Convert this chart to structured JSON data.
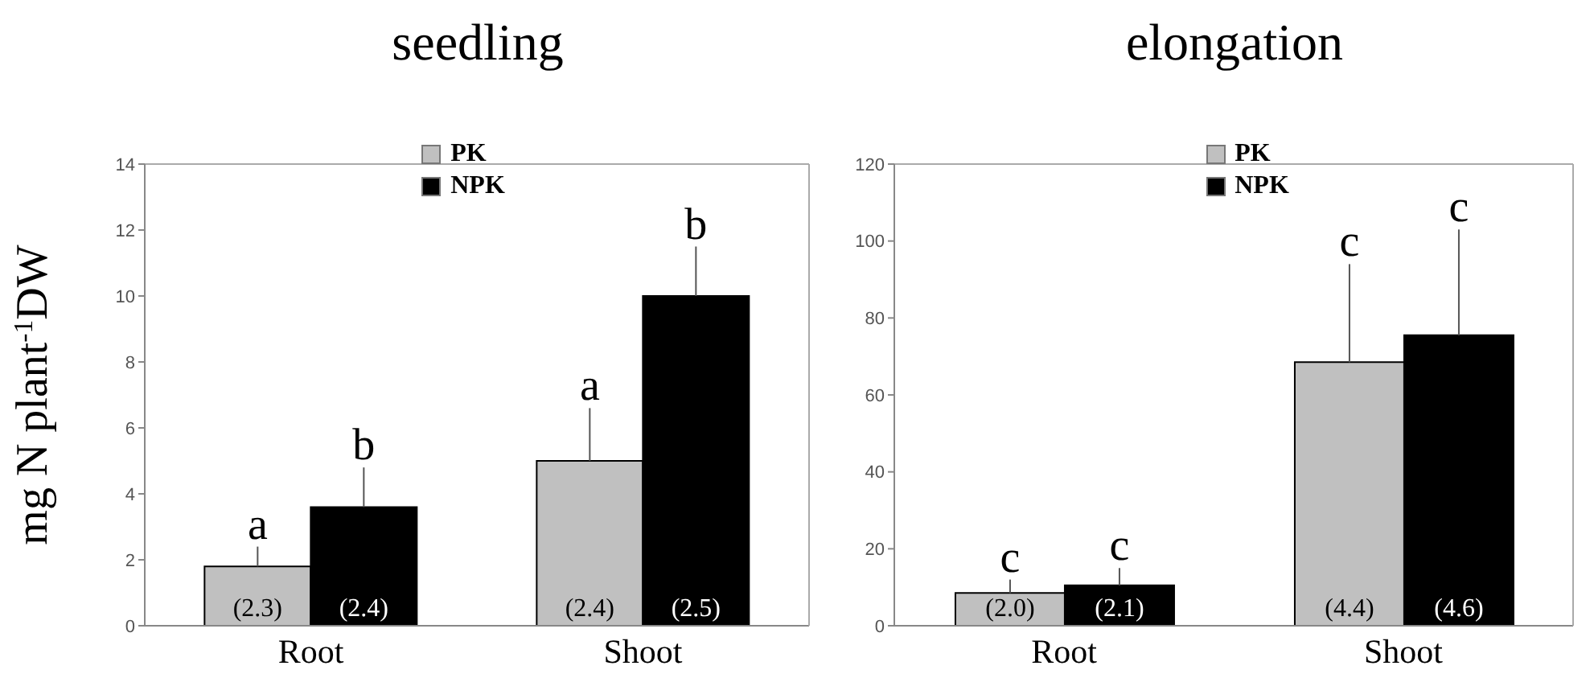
{
  "chart_data": [
    {
      "type": "bar",
      "title": "seedling",
      "ylabel": "mg N plant$^{-1}$DW",
      "categories": [
        "Root",
        "Shoot"
      ],
      "series": [
        {
          "name": "PK",
          "color": "#c0c0c0",
          "values": [
            1.8,
            5.0
          ],
          "errors": [
            [
              1.8,
              2.4
            ],
            [
              5.0,
              6.6
            ]
          ]
        },
        {
          "name": "NPK",
          "color": "#000000",
          "values": [
            3.6,
            10.0
          ],
          "errors": [
            [
              3.6,
              4.8
            ],
            [
              10.0,
              11.5
            ]
          ]
        }
      ],
      "ylim": [
        0,
        14
      ],
      "yticks": [
        0,
        2,
        4,
        6,
        8,
        10,
        12,
        14
      ],
      "legend": "top",
      "grid": false,
      "annotations": [
        "a",
        "b",
        "a",
        "b",
        "(2.3)",
        "(2.4)",
        "(2.4)",
        "(2.5)"
      ]
    },
    {
      "type": "bar",
      "title": "elongation",
      "categories": [
        "Root",
        "Shoot"
      ],
      "series": [
        {
          "name": "PK",
          "color": "#c0c0c0",
          "values": [
            8.5,
            68.5
          ],
          "errors": [
            [
              8.5,
              12
            ],
            [
              68.5,
              94
            ]
          ]
        },
        {
          "name": "NPK",
          "color": "#000000",
          "values": [
            10.5,
            75.5
          ],
          "errors": [
            [
              10.5,
              15
            ],
            [
              75.5,
              103
            ]
          ]
        }
      ],
      "ylim": [
        0,
        120
      ],
      "yticks": [
        0,
        20,
        40,
        60,
        80,
        100,
        120
      ],
      "legend": "top",
      "grid": false,
      "annotations": [
        "c",
        "c",
        "c",
        "c",
        "(2.0)",
        "(2.1)",
        "(4.4)",
        "(4.6)"
      ]
    }
  ]
}
